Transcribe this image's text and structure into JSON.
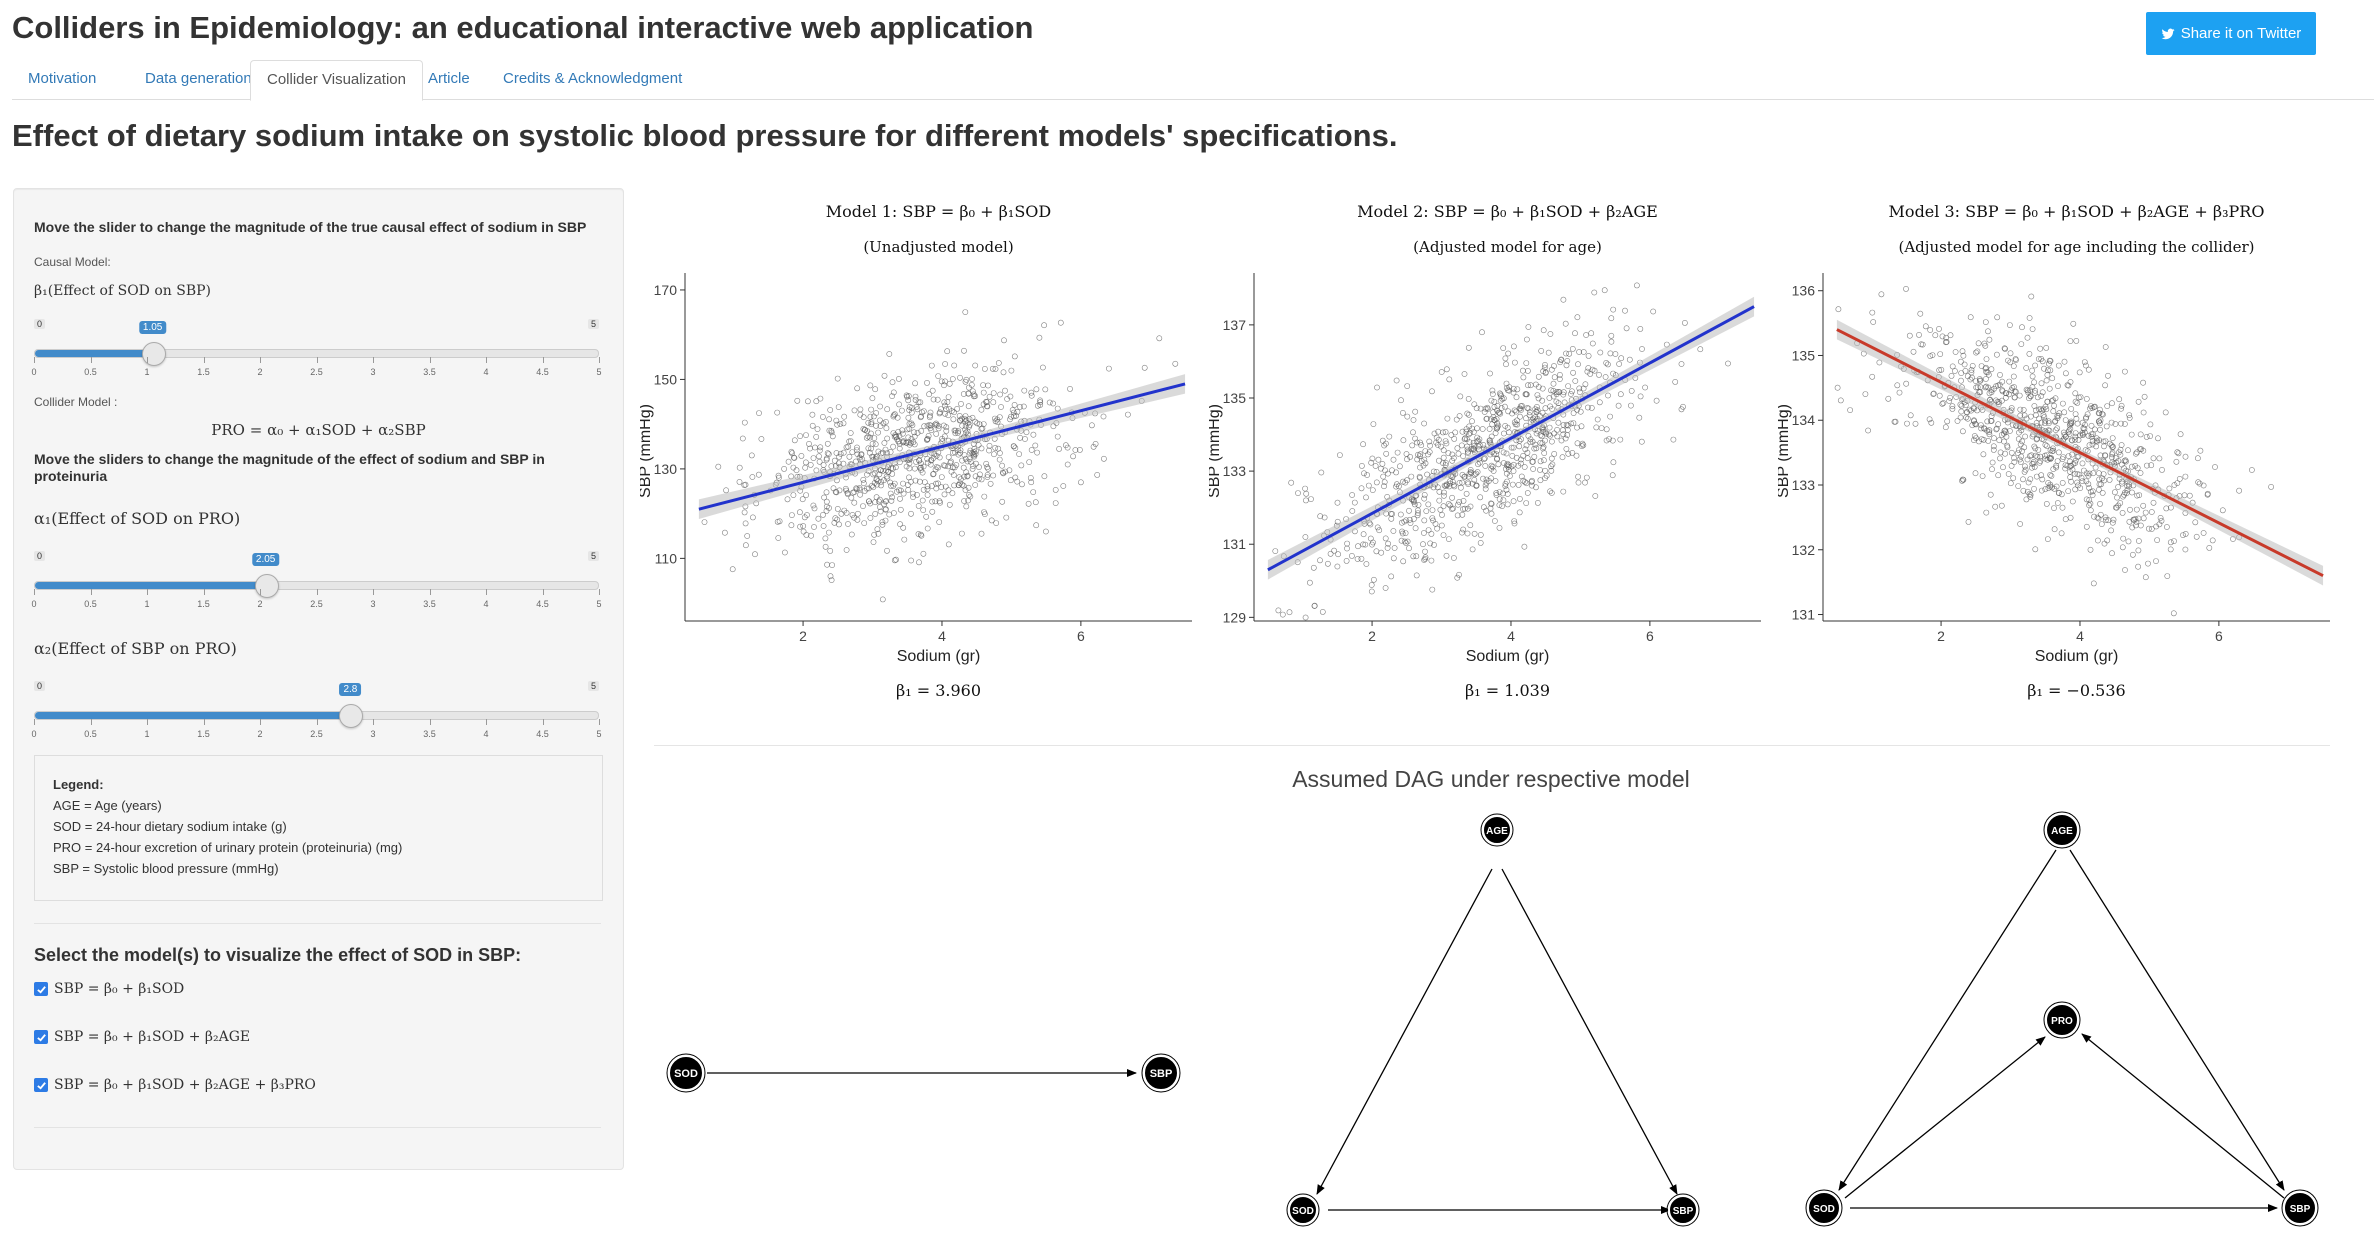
{
  "header": {
    "title": "Colliders in Epidemiology: an educational interactive web application",
    "share_label": "Share it on Twitter"
  },
  "tabs": [
    "Motivation",
    "Data generation",
    "Collider Visualization",
    "Article",
    "Credits & Acknowledgment"
  ],
  "active_tab": "Collider Visualization",
  "page_heading": "Effect of dietary sodium intake on systolic blood pressure for different models' specifications.",
  "sidebar": {
    "slider_instruction": "Move the slider to change the magnitude of the true causal effect of sodium in SBP",
    "causal_model_label": "Causal Model:",
    "beta1_label": "β₁(Effect of SOD on SBP)",
    "collider_model_label": "Collider Model :",
    "collider_equation": "PRO = α₀ + α₁SOD + α₂SBP",
    "sliders_instruction": "Move the sliders to change the magnitude of the effect of sodium and SBP in proteinuria",
    "alpha1_label": "α₁(Effect of SOD on PRO)",
    "alpha2_label": "α₂(Effect of SBP on PRO)",
    "sliders": [
      {
        "id": "beta1",
        "min": "0",
        "max": "5",
        "value": 1.05,
        "value_label": "1.05"
      },
      {
        "id": "alpha1",
        "min": "0",
        "max": "5",
        "value": 2.05,
        "value_label": "2.05"
      },
      {
        "id": "alpha2",
        "min": "0",
        "max": "5",
        "value": 2.8,
        "value_label": "2.8"
      }
    ],
    "slider_ticks": [
      "0",
      "0.5",
      "1",
      "1.5",
      "2",
      "2.5",
      "3",
      "3.5",
      "4",
      "4.5",
      "5"
    ],
    "legend": {
      "title": "Legend:",
      "items": [
        "AGE = Age (years)",
        "SOD = 24-hour dietary sodium intake (g)",
        "PRO = 24-hour excretion of urinary protein (proteinuria) (mg)",
        "SBP = Systolic blood pressure (mmHg)"
      ]
    },
    "select_heading": "Select the model(s) to visualize the effect of SOD in SBP:",
    "model_options": [
      {
        "label": "SBP = β₀ + β₁SOD",
        "checked": true
      },
      {
        "label": "SBP = β₀ + β₁SOD + β₂AGE",
        "checked": true
      },
      {
        "label": "SBP = β₀ + β₁SOD + β₂AGE + β₃PRO",
        "checked": true
      }
    ]
  },
  "chart_data": [
    {
      "type": "scatter",
      "title": "Model 1: SBP = β₀ + β₁SOD",
      "subtitle": "(Unadjusted model)",
      "xlabel": "Sodium (gr)",
      "ylabel": "SBP (mmHg)",
      "x_ticks": [
        2,
        4,
        6
      ],
      "y_ticks": [
        110,
        130,
        150,
        170
      ],
      "xlim": [
        0.3,
        7.6
      ],
      "ylim": [
        96,
        172
      ],
      "fit_line": {
        "x": [
          0.5,
          7.5
        ],
        "y": [
          121,
          149
        ],
        "color": "#2233cc"
      },
      "annotation": "β₁ = 3.960"
    },
    {
      "type": "scatter",
      "title": "Model 2: SBP = β₀ + β₁SOD + β₂AGE",
      "subtitle": "(Adjusted model for age)",
      "xlabel": "Sodium (gr)",
      "ylabel": "SBP (mmHg)",
      "x_ticks": [
        2,
        4,
        6
      ],
      "y_ticks": [
        129,
        131,
        133,
        135,
        137
      ],
      "xlim": [
        0.3,
        7.6
      ],
      "ylim": [
        128.9,
        138.2
      ],
      "fit_line": {
        "x": [
          0.5,
          7.5
        ],
        "y": [
          130.3,
          137.5
        ],
        "color": "#2233cc"
      },
      "annotation": "β₁ = 1.039"
    },
    {
      "type": "scatter",
      "title": "Model 3: SBP = β₀ + β₁SOD + β₂AGE + β₃PRO",
      "subtitle": "(Adjusted model for age including the collider)",
      "xlabel": "Sodium (gr)",
      "ylabel": "SBP (mmHg)",
      "x_ticks": [
        2,
        4,
        6
      ],
      "y_ticks": [
        131,
        132,
        133,
        134,
        135,
        136
      ],
      "xlim": [
        0.3,
        7.6
      ],
      "ylim": [
        130.9,
        136.15
      ],
      "fit_line": {
        "x": [
          0.5,
          7.5
        ],
        "y": [
          135.4,
          131.6
        ],
        "color": "#c83a2a"
      },
      "annotation": "β₁ = −0.536"
    }
  ],
  "dag": {
    "title": "Assumed DAG under respective model",
    "nodes": {
      "SOD": "SOD",
      "SBP": "SBP",
      "AGE": "AGE",
      "PRO": "PRO"
    }
  }
}
